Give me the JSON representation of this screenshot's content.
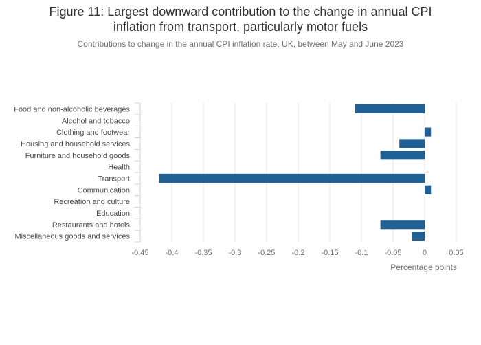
{
  "title_line1": "Figure 11: Largest downward contribution to the change in annual CPI",
  "title_line2": "inflation from transport, particularly motor fuels",
  "subtitle": "Contributions to change in the annual CPI inflation rate, UK, between May and June 2023",
  "colors": {
    "bar": "#206095",
    "grid": "#e4e4e4",
    "axis": "#c9d4e0"
  },
  "chart_data": {
    "type": "bar",
    "orientation": "horizontal",
    "xlabel": "Percentage points",
    "xlim": [
      -0.45,
      0.05
    ],
    "xticks": [
      -0.45,
      -0.4,
      -0.35,
      -0.3,
      -0.25,
      -0.2,
      -0.15,
      -0.1,
      -0.05,
      0,
      0.05
    ],
    "xtick_labels": [
      "-0.45",
      "-0.4",
      "-0.35",
      "-0.3",
      "-0.25",
      "-0.2",
      "-0.15",
      "-0.1",
      "-0.05",
      "0",
      "0.05"
    ],
    "grid": true,
    "categories": [
      "Food and non-alcoholic beverages",
      "Alcohol and tobacco",
      "Clothing and footwear",
      "Housing and household services",
      "Furniture and household goods",
      "Health",
      "Transport",
      "Communication",
      "Recreation and culture",
      "Education",
      "Restaurants and hotels",
      "Miscellaneous goods and services"
    ],
    "values": [
      -0.11,
      0,
      0.01,
      -0.04,
      -0.07,
      0,
      -0.42,
      0.01,
      0,
      0,
      -0.07,
      -0.02
    ]
  }
}
